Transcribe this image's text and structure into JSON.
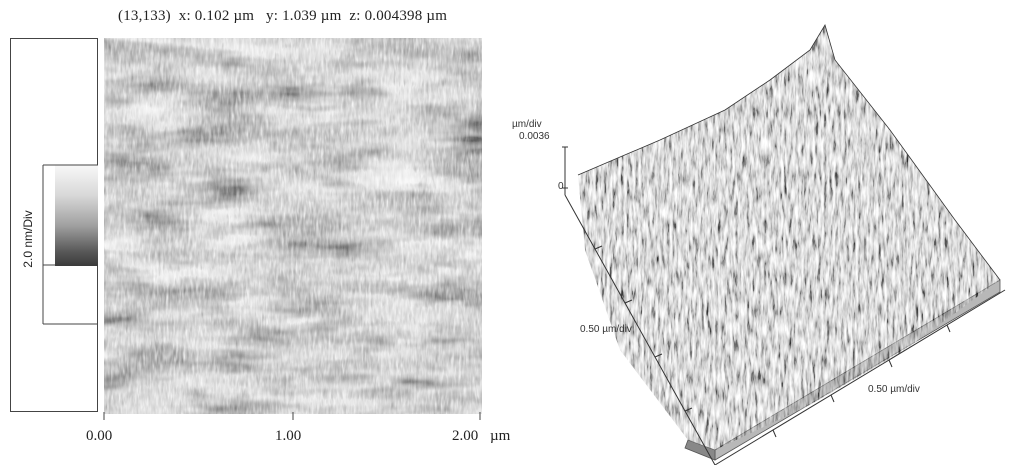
{
  "readout": {
    "coords": "(13,133)",
    "x_text": "x: 0.102 µm",
    "y_text": "y: 1.039 µm",
    "z_text": "z: 0.004398 µm"
  },
  "scale_bar": {
    "label": "2.0 nm/Div"
  },
  "image2d": {
    "x_ticks": [
      "0.00",
      "1.00",
      "2.00"
    ],
    "x_unit": "µm"
  },
  "view3d": {
    "z_unit": "µm/div",
    "z_max": "0.0036",
    "z_min": "0",
    "y_axis_label": "0.50 µm/div",
    "x_axis_label": "0.50 µm/div"
  },
  "colors": {
    "surface_dark": "#3a3a3a",
    "surface_light": "#f4f4f4"
  }
}
